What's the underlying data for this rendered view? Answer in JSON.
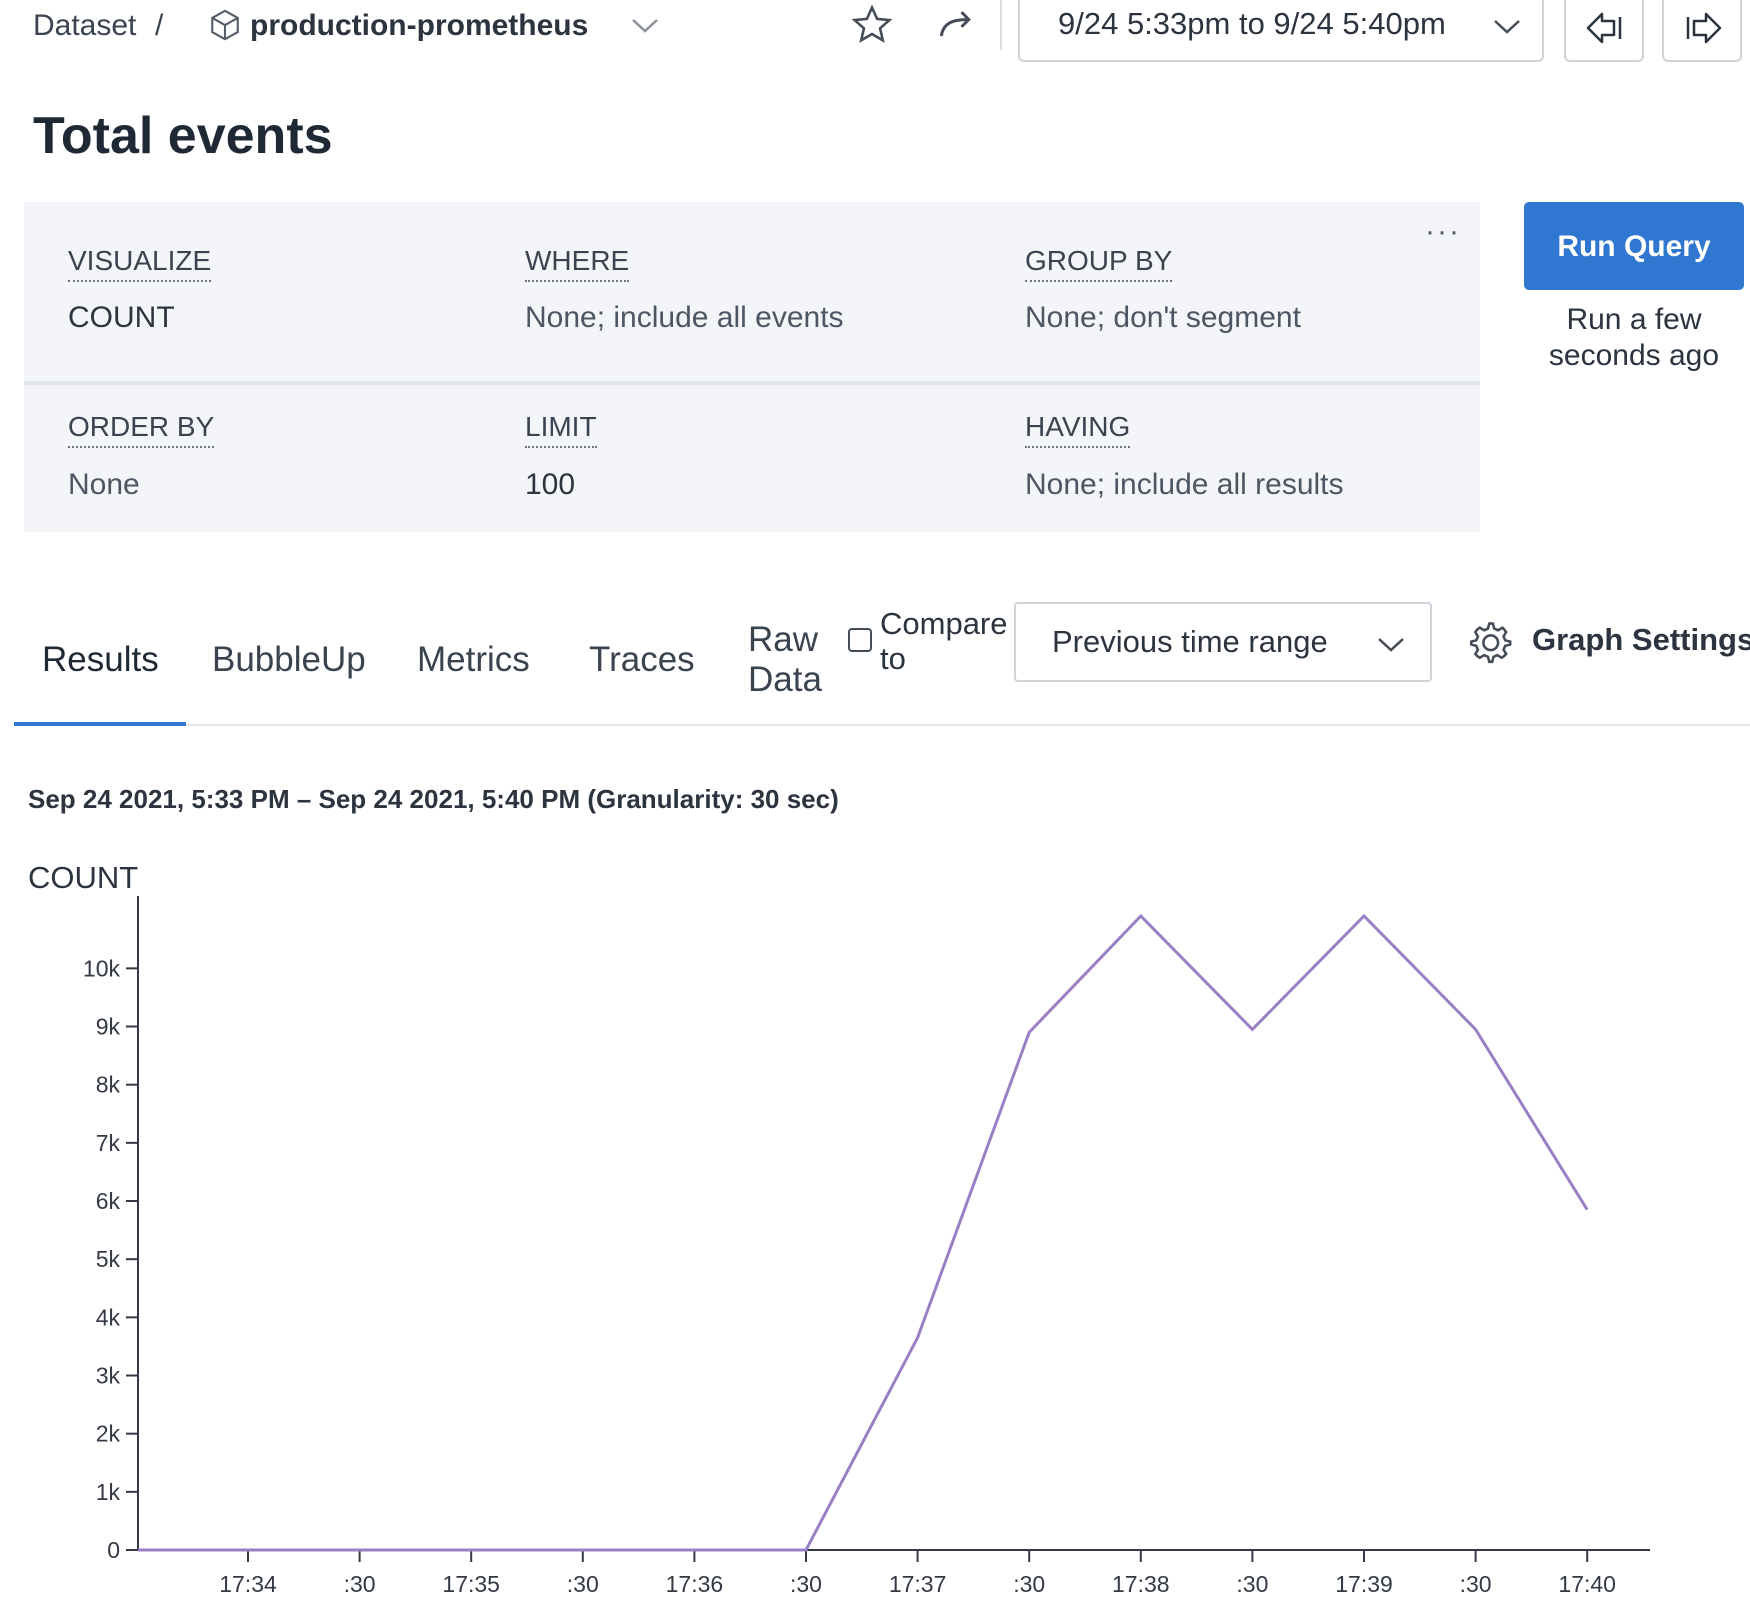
{
  "header": {
    "breadcrumb_root": "Dataset",
    "breadcrumb_sep": "/",
    "dataset_name": "production-prometheus",
    "time_range": "9/24 5:33pm to 9/24 5:40pm"
  },
  "page": {
    "title": "Total events"
  },
  "query": {
    "visualize": {
      "label": "VISUALIZE",
      "value": "COUNT"
    },
    "where": {
      "label": "WHERE",
      "value": "None; include all events"
    },
    "group_by": {
      "label": "GROUP BY",
      "value": "None; don't segment"
    },
    "order_by": {
      "label": "ORDER BY",
      "value": "None"
    },
    "limit": {
      "label": "LIMIT",
      "value": "100"
    },
    "having": {
      "label": "HAVING",
      "value": "None; include all results"
    },
    "more": "···",
    "run_label": "Run Query",
    "run_status": "Run a few seconds ago"
  },
  "tabs": {
    "results": "Results",
    "bubbleup": "BubbleUp",
    "metrics": "Metrics",
    "traces": "Traces",
    "raw_data": "Raw Data",
    "compare_label": "Compare to",
    "compare_value": "Previous time range",
    "graph_settings": "Graph Settings"
  },
  "colors": {
    "accent": "#2f77d0",
    "series": "#9b7fc4"
  },
  "icons": [
    "cube-icon",
    "chevron-down-icon",
    "star-icon",
    "share-icon",
    "step-back-icon",
    "step-forward-icon",
    "gear-icon"
  ],
  "chart_data": {
    "type": "line",
    "title": "Sep 24 2021, 5:33 PM – Sep 24 2021, 5:40 PM (Granularity: 30 sec)",
    "ylabel": "COUNT",
    "xlabel": "",
    "ylim": [
      0,
      10900
    ],
    "yticks": [
      0,
      1000,
      2000,
      3000,
      4000,
      5000,
      6000,
      7000,
      8000,
      9000,
      10000
    ],
    "ytick_labels": [
      "0",
      "1k",
      "2k",
      "3k",
      "4k",
      "5k",
      "6k",
      "7k",
      "8k",
      "9k",
      "10k"
    ],
    "xtick_labels": [
      "17:34",
      ":30",
      "17:35",
      ":30",
      "17:36",
      ":30",
      "17:37",
      ":30",
      "17:38",
      ":30",
      "17:39",
      ":30",
      "17:40"
    ],
    "grid": false,
    "series": [
      {
        "x": [
          "17:33:30",
          "17:34:00",
          "17:34:30",
          "17:35:00",
          "17:35:30",
          "17:36:00",
          "17:36:30",
          "17:37:00",
          "17:37:30",
          "17:38:00",
          "17:38:30",
          "17:39:00",
          "17:39:30",
          "17:40:00"
        ],
        "values": [
          0,
          0,
          0,
          0,
          0,
          0,
          0,
          3650,
          8900,
          10900,
          8950,
          10900,
          8950,
          5850
        ]
      }
    ]
  }
}
